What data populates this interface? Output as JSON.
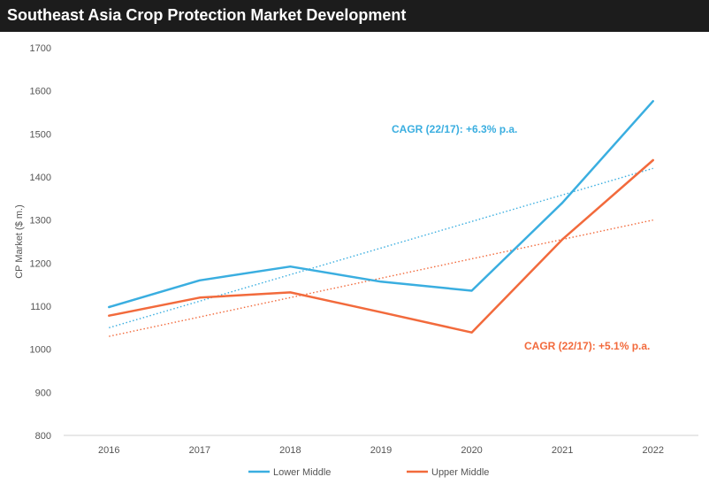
{
  "header": {
    "title": "Southeast Asia Crop Protection Market Development"
  },
  "chart_data": {
    "type": "line",
    "title": "Southeast Asia Crop Protection Market Development",
    "xlabel": "",
    "ylabel": "CP Market ($ m.)",
    "categories": [
      "2016",
      "2017",
      "2018",
      "2019",
      "2020",
      "2021",
      "2022"
    ],
    "ylim": [
      800,
      1700
    ],
    "yticks": [
      800,
      900,
      1000,
      1100,
      1200,
      1300,
      1400,
      1500,
      1600,
      1700
    ],
    "grid": false,
    "legend_position": "bottom",
    "series": [
      {
        "name": "Lower Middle",
        "color": "#3aaee0",
        "values": [
          1098,
          1160,
          1192,
          1157,
          1136,
          1340,
          1576
        ],
        "trendline": {
          "start": 1050,
          "end": 1420
        }
      },
      {
        "name": "Upper Middle",
        "color": "#f26a3c",
        "values": [
          1078,
          1120,
          1132,
          1086,
          1039,
          1255,
          1439
        ],
        "trendline": {
          "start": 1030,
          "end": 1300
        }
      }
    ],
    "annotations": [
      {
        "text": "CAGR (22/17): +6.3% p.a.",
        "color": "#3aaee0",
        "series": 0
      },
      {
        "text": "CAGR (22/17): +5.1% p.a.",
        "color": "#f26a3c",
        "series": 1
      }
    ]
  }
}
